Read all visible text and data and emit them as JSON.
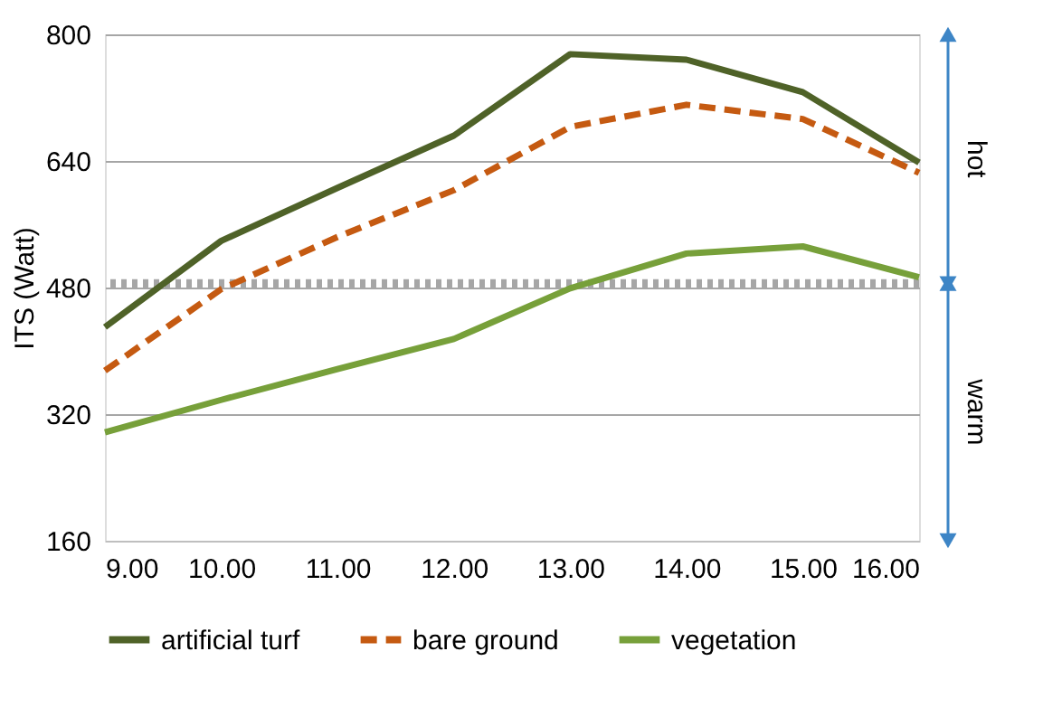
{
  "chart_data": {
    "type": "line",
    "ylabel": "ITS (Watt)",
    "x": [
      9,
      10,
      11,
      12,
      13,
      14,
      15,
      16
    ],
    "xlim": [
      9,
      16
    ],
    "xticks": [
      {
        "value": 9,
        "label": "9.00"
      },
      {
        "value": 10,
        "label": "10.00"
      },
      {
        "value": 11,
        "label": "11.00"
      },
      {
        "value": 12,
        "label": "12.00"
      },
      {
        "value": 13,
        "label": "13.00"
      },
      {
        "value": 14,
        "label": "14.00"
      },
      {
        "value": 15,
        "label": "15.00"
      },
      {
        "value": 16,
        "label": "16.00"
      }
    ],
    "ylim": [
      160,
      800
    ],
    "yticks": [
      160,
      320,
      480,
      640,
      800
    ],
    "grid": "y",
    "legend": "bottom",
    "marker": "none",
    "series": [
      {
        "name": "artificial turf",
        "color": "#4f6228",
        "line_style": "solid",
        "values": [
          430,
          539,
          606,
          672,
          775,
          768,
          727,
          638
        ]
      },
      {
        "name": "bare ground",
        "color": "#c55a11",
        "line_style": "dashed",
        "values": [
          375,
          478,
          544,
          603,
          683,
          711,
          693,
          625
        ]
      },
      {
        "name": "vegetation",
        "color": "#77a03a",
        "line_style": "solid",
        "values": [
          297,
          338,
          377,
          415,
          479,
          523,
          532,
          493
        ]
      }
    ],
    "ref_lines": [
      {
        "axis": "y",
        "value": 485,
        "color": "#a6a6a6",
        "line_style": "dotted"
      }
    ],
    "annotations": [
      "hot",
      "warm"
    ]
  }
}
